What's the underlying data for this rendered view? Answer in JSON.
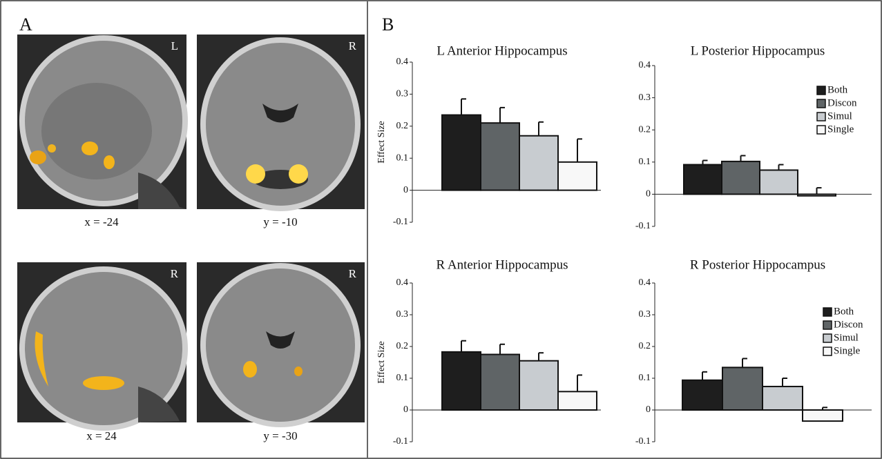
{
  "panels": {
    "a": "A",
    "b": "B"
  },
  "images": [
    {
      "corner": "L",
      "caption": "x = -24"
    },
    {
      "corner": "R",
      "caption": "y = -10"
    },
    {
      "corner": "R",
      "caption": "x = 24"
    },
    {
      "corner": "R",
      "caption": "y = -30"
    }
  ],
  "chart_data": [
    {
      "type": "bar",
      "title": "L Anterior Hippocampus",
      "ylabel": "Effect Size",
      "ylim": [
        -0.1,
        0.4
      ],
      "yticks": [
        -0.1,
        0,
        0.1,
        0.2,
        0.3,
        0.4
      ],
      "legend": false,
      "series": [
        {
          "name": "Both",
          "color": "#1e1e1e",
          "values": [
            0.235
          ],
          "errors": [
            0.05
          ]
        },
        {
          "name": "Discon",
          "color": "#5f6466",
          "values": [
            0.21
          ],
          "errors": [
            0.048
          ]
        },
        {
          "name": "Simul",
          "color": "#c8ccd0",
          "values": [
            0.17
          ],
          "errors": [
            0.043
          ]
        },
        {
          "name": "Single",
          "color": "#f8f8f8",
          "values": [
            0.088
          ],
          "errors": [
            0.072
          ]
        }
      ]
    },
    {
      "type": "bar",
      "title": "L Posterior Hippocampus",
      "ylim": [
        -0.1,
        0.4
      ],
      "yticks": [
        -0.1,
        0,
        0.1,
        0.2,
        0.3,
        0.4
      ],
      "legend": true,
      "series": [
        {
          "name": "Both",
          "color": "#1e1e1e",
          "values": [
            0.092
          ],
          "errors": [
            0.013
          ]
        },
        {
          "name": "Discon",
          "color": "#5f6466",
          "values": [
            0.102
          ],
          "errors": [
            0.018
          ]
        },
        {
          "name": "Simul",
          "color": "#c8ccd0",
          "values": [
            0.075
          ],
          "errors": [
            0.017
          ]
        },
        {
          "name": "Single",
          "color": "#f8f8f8",
          "values": [
            -0.005
          ],
          "errors": [
            0.025
          ]
        }
      ]
    },
    {
      "type": "bar",
      "title": "R Anterior Hippocampus",
      "ylabel": "Effect Size",
      "ylim": [
        -0.1,
        0.4
      ],
      "yticks": [
        -0.1,
        0,
        0.1,
        0.2,
        0.3,
        0.4
      ],
      "legend": false,
      "series": [
        {
          "name": "Both",
          "color": "#1e1e1e",
          "values": [
            0.183
          ],
          "errors": [
            0.035
          ]
        },
        {
          "name": "Discon",
          "color": "#5f6466",
          "values": [
            0.175
          ],
          "errors": [
            0.032
          ]
        },
        {
          "name": "Simul",
          "color": "#c8ccd0",
          "values": [
            0.155
          ],
          "errors": [
            0.025
          ]
        },
        {
          "name": "Single",
          "color": "#f8f8f8",
          "values": [
            0.058
          ],
          "errors": [
            0.052
          ]
        }
      ]
    },
    {
      "type": "bar",
      "title": "R Posterior Hippocampus",
      "ylim": [
        -0.1,
        0.4
      ],
      "yticks": [
        -0.1,
        0,
        0.1,
        0.2,
        0.3,
        0.4
      ],
      "legend": true,
      "series": [
        {
          "name": "Both",
          "color": "#1e1e1e",
          "values": [
            0.094
          ],
          "errors": [
            0.026
          ]
        },
        {
          "name": "Discon",
          "color": "#5f6466",
          "values": [
            0.134
          ],
          "errors": [
            0.028
          ]
        },
        {
          "name": "Simul",
          "color": "#c8ccd0",
          "values": [
            0.074
          ],
          "errors": [
            0.026
          ]
        },
        {
          "name": "Single",
          "color": "#f8f8f8",
          "values": [
            -0.035
          ],
          "errors": [
            0.043
          ]
        }
      ]
    }
  ]
}
